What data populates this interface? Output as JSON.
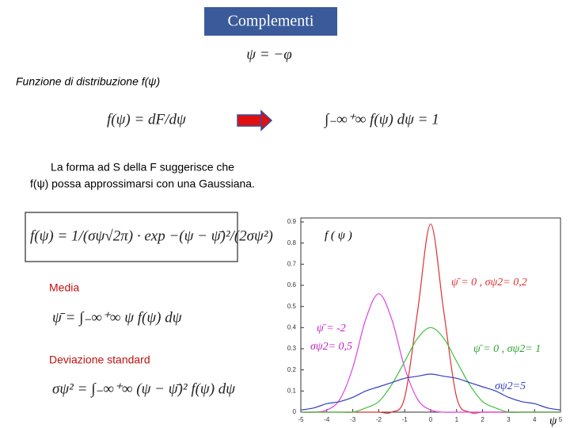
{
  "title": "Complementi",
  "definition": "ψ = −φ",
  "distribution_label": "Funzione di distribuzione f(ψ)",
  "formulas": {
    "density": "f(ψ) = dF/dψ",
    "normalization": "∫₋∞⁺∞ f(ψ) dψ = 1",
    "gaussian": "f(ψ) = 1/(σψ√2π) · exp −(ψ − ψ̄)²/(2σψ²)",
    "mean": "ψ̄ = ∫₋∞⁺∞ ψ f(ψ) dψ",
    "variance": "σψ² = ∫₋∞⁺∞ (ψ − ψ̄)² f(ψ) dψ"
  },
  "note": [
    "La forma ad S della F suggerisce che",
    "f(ψ) possa approssimarsi con una Gaussiana."
  ],
  "mean_label": "Media",
  "std_label": "Deviazione standard",
  "chart_data": {
    "type": "line",
    "y_label": "f ( ψ )",
    "x_label": "ψ",
    "x": [
      -5,
      -4.5,
      -4,
      -3.5,
      -3,
      -2.5,
      -2,
      -1.5,
      -1,
      -0.5,
      0,
      0.5,
      1,
      1.5,
      2,
      2.5,
      3,
      3.5,
      4,
      4.5,
      5
    ],
    "series": [
      {
        "color": "#e03030",
        "values": [
          0,
          0,
          0,
          0,
          0,
          0,
          0,
          0,
          0.07,
          0.48,
          0.89,
          0.48,
          0.07,
          0,
          0,
          0,
          0,
          0,
          0,
          0,
          0
        ]
      },
      {
        "color": "#e040e0",
        "values": [
          0,
          0,
          0.01,
          0.06,
          0.21,
          0.44,
          0.56,
          0.44,
          0.21,
          0.06,
          0.01,
          0,
          0,
          0,
          0,
          0,
          0,
          0,
          0,
          0,
          0
        ]
      },
      {
        "color": "#40c040",
        "values": [
          0,
          0,
          0,
          0,
          0,
          0.02,
          0.05,
          0.13,
          0.24,
          0.35,
          0.4,
          0.35,
          0.24,
          0.13,
          0.05,
          0.02,
          0,
          0,
          0,
          0,
          0
        ]
      },
      {
        "color": "#3040c0",
        "values": [
          0.01,
          0.02,
          0.04,
          0.05,
          0.07,
          0.1,
          0.12,
          0.14,
          0.16,
          0.17,
          0.18,
          0.17,
          0.16,
          0.14,
          0.12,
          0.1,
          0.07,
          0.05,
          0.04,
          0.02,
          0.01
        ]
      }
    ],
    "annotations": [
      {
        "text": "ψ̄ = 0 ,  σψ2= 0,2",
        "color": "#e03030"
      },
      {
        "text": "ψ̄ = -2",
        "color": "#c020c0"
      },
      {
        "text": "σψ2= 0,5",
        "color": "#c020c0"
      },
      {
        "text": "ψ̄ = 0 , σψ2= 1",
        "color": "#30a030"
      },
      {
        "text": "σψ2=5",
        "color": "#3040c0"
      }
    ],
    "xlim": [
      -5,
      5
    ],
    "xticks": [
      -5,
      -4,
      -3,
      -2,
      -1,
      0,
      1,
      2,
      3,
      4,
      5
    ],
    "ylim": [
      0,
      0.9
    ],
    "yticks": [
      0,
      0.1,
      0.2,
      0.3,
      0.4,
      0.5,
      0.6,
      0.7,
      0.8,
      0.9
    ]
  }
}
